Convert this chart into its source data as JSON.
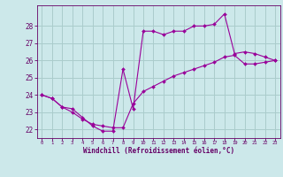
{
  "background_color": "#cce8ea",
  "grid_color": "#aacccc",
  "line_color": "#990099",
  "marker_color": "#990099",
  "xlabel": "Windchill (Refroidissement éolien,°C)",
  "xlabel_color": "#660066",
  "tick_color": "#660066",
  "ylim": [
    21.5,
    29.2
  ],
  "xlim": [
    -0.5,
    23.5
  ],
  "yticks": [
    22,
    23,
    24,
    25,
    26,
    27,
    28
  ],
  "xticks": [
    0,
    1,
    2,
    3,
    4,
    5,
    6,
    7,
    8,
    9,
    10,
    11,
    12,
    13,
    14,
    15,
    16,
    17,
    18,
    19,
    20,
    21,
    22,
    23
  ],
  "series1_x": [
    0,
    1,
    2,
    3,
    4,
    5,
    6,
    7,
    8,
    9,
    10,
    11,
    12,
    13,
    14,
    15,
    16,
    17,
    18,
    19,
    20,
    21,
    22,
    23
  ],
  "series1_y": [
    24.0,
    23.8,
    23.3,
    23.2,
    22.7,
    22.2,
    21.9,
    21.9,
    25.5,
    23.2,
    27.7,
    27.7,
    27.5,
    27.7,
    27.7,
    28.0,
    28.0,
    28.1,
    28.7,
    26.4,
    26.5,
    26.4,
    26.2,
    26.0
  ],
  "series2_x": [
    0,
    1,
    2,
    3,
    4,
    5,
    6,
    7,
    8,
    9,
    10,
    11,
    12,
    13,
    14,
    15,
    16,
    17,
    18,
    19,
    20,
    21,
    22,
    23
  ],
  "series2_y": [
    24.0,
    23.8,
    23.3,
    23.0,
    22.6,
    22.3,
    22.2,
    22.1,
    22.1,
    23.5,
    24.2,
    24.5,
    24.8,
    25.1,
    25.3,
    25.5,
    25.7,
    25.9,
    26.2,
    26.3,
    25.8,
    25.8,
    25.9,
    26.0
  ]
}
